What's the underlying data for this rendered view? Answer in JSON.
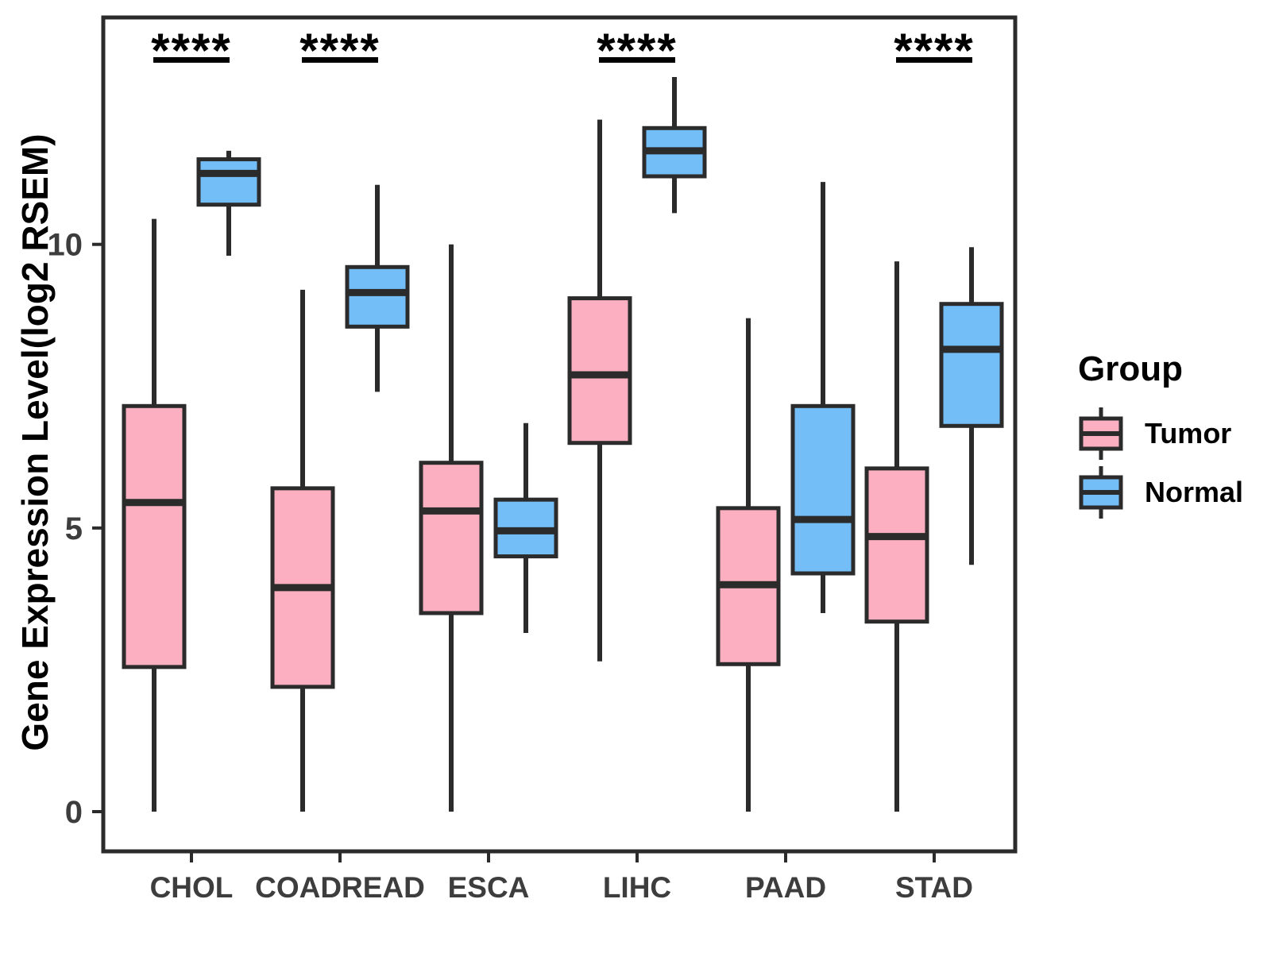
{
  "y_axis": {
    "label": "Gene Expression Level(log2 RSEM)",
    "tick_labels": [
      "0",
      "5",
      "10"
    ]
  },
  "x_axis": {
    "categories": [
      "CHOL",
      "COADREAD",
      "ESCA",
      "LIHC",
      "PAAD",
      "STAD"
    ]
  },
  "legend": {
    "title": "Group",
    "items": [
      {
        "label": "Tumor",
        "color": "#FBAFC1"
      },
      {
        "label": "Normal",
        "color": "#74BEF8"
      }
    ]
  },
  "chart_data": {
    "type": "box",
    "title": "",
    "xlabel": "",
    "ylabel": "Gene Expression Level(log2 RSEM)",
    "categories": [
      "CHOL",
      "COADREAD",
      "ESCA",
      "LIHC",
      "PAAD",
      "STAD"
    ],
    "groups": [
      "Tumor",
      "Normal"
    ],
    "yticks": [
      0,
      5,
      10
    ],
    "ylim": [
      -0.7,
      14.0
    ],
    "grid": false,
    "legend_position": "right",
    "frame_color": "#2b2b2b",
    "tick_label_color": "#3d3d3d",
    "series": [
      {
        "name": "Tumor",
        "color": "#FBAFC1",
        "boxes": [
          {
            "category": "CHOL",
            "min": 0,
            "q1": 2.55,
            "median": 5.45,
            "q3": 7.15,
            "max": 10.45
          },
          {
            "category": "COADREAD",
            "min": 0,
            "q1": 2.2,
            "median": 3.95,
            "q3": 5.7,
            "max": 9.2
          },
          {
            "category": "ESCA",
            "min": 0,
            "q1": 3.5,
            "median": 5.3,
            "q3": 6.15,
            "max": 10.0
          },
          {
            "category": "LIHC",
            "min": 2.65,
            "q1": 6.5,
            "median": 7.7,
            "q3": 9.05,
            "max": 12.2
          },
          {
            "category": "PAAD",
            "min": 0,
            "q1": 2.6,
            "median": 4.0,
            "q3": 5.35,
            "max": 8.7
          },
          {
            "category": "STAD",
            "min": 0,
            "q1": 3.35,
            "median": 4.85,
            "q3": 6.05,
            "max": 9.7
          }
        ]
      },
      {
        "name": "Normal",
        "color": "#74BEF8",
        "boxes": [
          {
            "category": "CHOL",
            "min": 9.8,
            "q1": 10.7,
            "median": 11.25,
            "q3": 11.5,
            "max": 11.65
          },
          {
            "category": "COADREAD",
            "min": 7.4,
            "q1": 8.55,
            "median": 9.15,
            "q3": 9.6,
            "max": 11.05
          },
          {
            "category": "ESCA",
            "min": 3.15,
            "q1": 4.5,
            "median": 4.95,
            "q3": 5.5,
            "max": 6.85
          },
          {
            "category": "LIHC",
            "min": 10.55,
            "q1": 11.2,
            "median": 11.65,
            "q3": 12.05,
            "max": 12.95
          },
          {
            "category": "PAAD",
            "min": 3.5,
            "q1": 4.2,
            "median": 5.15,
            "q3": 7.15,
            "max": 11.1
          },
          {
            "category": "STAD",
            "min": 4.35,
            "q1": 6.8,
            "median": 8.15,
            "q3": 8.95,
            "max": 9.95
          }
        ]
      }
    ],
    "significance": [
      {
        "category": "CHOL",
        "label": "****"
      },
      {
        "category": "COADREAD",
        "label": "****"
      },
      {
        "category": "LIHC",
        "label": "****"
      },
      {
        "category": "STAD",
        "label": "****"
      }
    ]
  }
}
